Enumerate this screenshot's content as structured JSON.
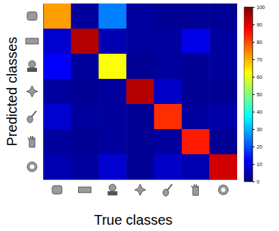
{
  "chart_data": {
    "type": "heatmap",
    "x_label": "True classes",
    "y_label": "Predicted classes",
    "categories": [
      null,
      null,
      null,
      null,
      null,
      null,
      null
    ],
    "values": [
      [
        72,
        3,
        25,
        3,
        2,
        2,
        2
      ],
      [
        8,
        95,
        5,
        3,
        3,
        10,
        3
      ],
      [
        12,
        3,
        62,
        2,
        3,
        2,
        3
      ],
      [
        3,
        2,
        3,
        95,
        7,
        2,
        2
      ],
      [
        8,
        3,
        3,
        2,
        83,
        3,
        4
      ],
      [
        3,
        2,
        3,
        2,
        3,
        85,
        2
      ],
      [
        5,
        3,
        8,
        2,
        7,
        5,
        92
      ]
    ],
    "color_range": [
      0,
      100
    ],
    "color_ticks": [
      0,
      10,
      20,
      30,
      40,
      50,
      60,
      70,
      80,
      90,
      100
    ]
  }
}
